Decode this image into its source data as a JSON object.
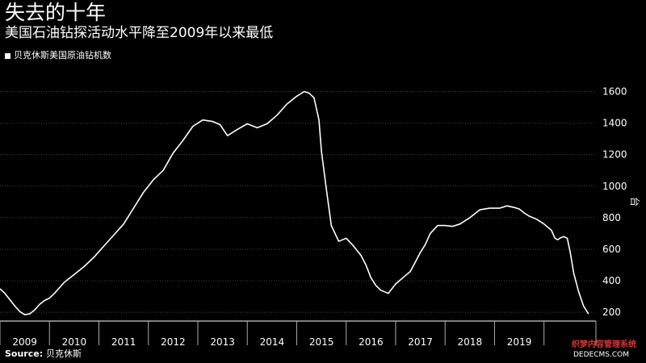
{
  "header": {
    "title": "失去的十年",
    "subtitle": "美国石油钻探活动水平降至2009年以来最低"
  },
  "legend": {
    "label": "贝克休斯美国原油钻机数"
  },
  "footer": {
    "source_label": "Source:",
    "source_value": "贝克休斯",
    "watermark_line1": "织梦内容管理系统",
    "watermark_line2": "DEDECMS.COM"
  },
  "colors": {
    "background": "#000000",
    "line": "#ffffff",
    "grid": "#444444"
  },
  "chart_data": {
    "type": "line",
    "title": "失去的十年",
    "subtitle": "美国石油钻探活动水平降至2009年以来最低",
    "xlabel": "",
    "ylabel": "台",
    "xlim": [
      2008.5,
      2020.55
    ],
    "ylim": [
      160,
      1720
    ],
    "y_ticks": [
      200,
      400,
      600,
      800,
      1000,
      1200,
      1400,
      1600
    ],
    "x_tick_labels": [
      "2009",
      "2010",
      "2011",
      "2012",
      "2013",
      "2014",
      "2015",
      "2016",
      "2017",
      "2018",
      "2019"
    ],
    "grid": "horizontal",
    "legend_position": "top-left",
    "series": [
      {
        "name": "贝克休斯美国原油钻机数",
        "x": [
          2008.5,
          2008.6,
          2008.7,
          2008.8,
          2008.9,
          2009.0,
          2009.1,
          2009.2,
          2009.3,
          2009.4,
          2009.5,
          2009.6,
          2009.8,
          2010.0,
          2010.2,
          2010.4,
          2010.6,
          2010.8,
          2011.0,
          2011.2,
          2011.4,
          2011.6,
          2011.8,
          2012.0,
          2012.2,
          2012.4,
          2012.6,
          2012.8,
          2012.95,
          2013.1,
          2013.3,
          2013.5,
          2013.7,
          2013.9,
          2014.1,
          2014.3,
          2014.5,
          2014.65,
          2014.75,
          2014.85,
          2014.95,
          2015.0,
          2015.1,
          2015.2,
          2015.35,
          2015.5,
          2015.65,
          2015.8,
          2015.9,
          2016.0,
          2016.1,
          2016.2,
          2016.35,
          2016.5,
          2016.65,
          2016.8,
          2016.9,
          2017.0,
          2017.1,
          2017.2,
          2017.35,
          2017.5,
          2017.65,
          2017.8,
          2018.0,
          2018.2,
          2018.4,
          2018.6,
          2018.75,
          2018.9,
          2019.0,
          2019.1,
          2019.2,
          2019.35,
          2019.5,
          2019.65,
          2019.72,
          2019.78,
          2019.82,
          2019.9,
          2019.97,
          2020.03,
          2020.1,
          2020.2,
          2020.3,
          2020.4
        ],
        "values": [
          350,
          320,
          280,
          240,
          205,
          185,
          190,
          215,
          250,
          275,
          290,
          320,
          390,
          440,
          490,
          550,
          620,
          690,
          760,
          860,
          960,
          1040,
          1100,
          1210,
          1290,
          1380,
          1420,
          1410,
          1390,
          1320,
          1360,
          1395,
          1370,
          1395,
          1450,
          1520,
          1570,
          1600,
          1590,
          1560,
          1420,
          1220,
          980,
          750,
          650,
          670,
          620,
          560,
          500,
          420,
          370,
          340,
          320,
          380,
          420,
          460,
          520,
          580,
          630,
          700,
          750,
          750,
          745,
          760,
          800,
          850,
          860,
          860,
          875,
          865,
          855,
          830,
          810,
          790,
          760,
          720,
          670,
          660,
          670,
          680,
          670,
          580,
          450,
          330,
          240,
          190
        ]
      }
    ]
  }
}
